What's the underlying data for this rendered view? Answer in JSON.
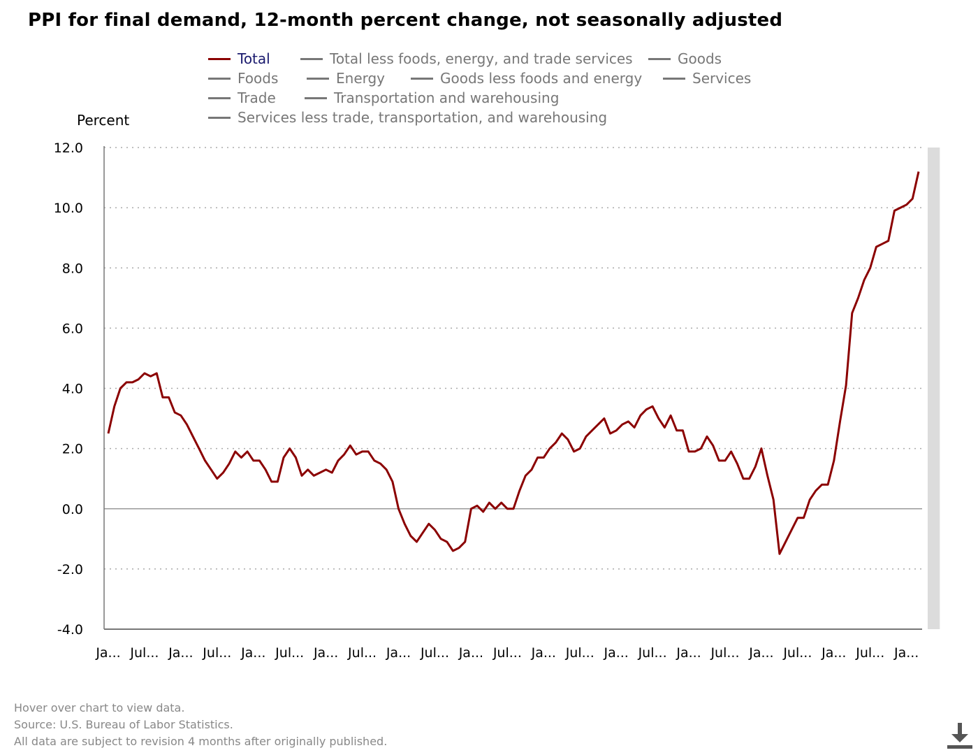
{
  "title": "PPI for final demand, 12-month percent change, not seasonally adjusted",
  "legend": [
    {
      "label": "Total",
      "active": true
    },
    {
      "label": "Total less foods, energy, and trade services",
      "active": false
    },
    {
      "label": "Goods",
      "active": false
    },
    {
      "label": "Foods",
      "active": false
    },
    {
      "label": "Energy",
      "active": false
    },
    {
      "label": "Goods less foods and energy",
      "active": false
    },
    {
      "label": "Services",
      "active": false
    },
    {
      "label": "Trade",
      "active": false
    },
    {
      "label": "Transportation and warehousing",
      "active": false
    },
    {
      "label": "Services less trade, transportation, and warehousing",
      "active": false
    }
  ],
  "footer": {
    "hover": "Hover over chart to view data.",
    "source": "Source: U.S. Bureau of Labor Statistics.",
    "revision": "All data are subject to revision 4 months after originally published."
  },
  "icons": {
    "download": "download-icon"
  },
  "colors": {
    "total_line": "#8b0000",
    "recession_band": "#dcdcdc",
    "grid": "#aaaaaa",
    "inactive_legend": "#777777",
    "active_legend_text": "#1a1a6e"
  },
  "chart_data": {
    "type": "line",
    "ylabel": "Percent",
    "ylim": [
      -4,
      12
    ],
    "yticks": [
      "12.0",
      "10.0",
      "8.0",
      "6.0",
      "4.0",
      "2.0",
      "0.0",
      "-2.0",
      "-4.0"
    ],
    "ytick_values": [
      12,
      10,
      8,
      6,
      4,
      2,
      0,
      -2,
      -4
    ],
    "xticks": [
      "Ja...",
      "Jul...",
      "Ja...",
      "Jul...",
      "Ja...",
      "Jul...",
      "Ja...",
      "Jul...",
      "Ja...",
      "Jul...",
      "Ja...",
      "Jul...",
      "Ja...",
      "Jul...",
      "Ja...",
      "Jul...",
      "Ja...",
      "Jul...",
      "Ja...",
      "Jul...",
      "Ja...",
      "Jul...",
      "Ja..."
    ],
    "grid": "horizontal dotted",
    "legend_position": "top",
    "recession_shading": {
      "start_month_index": 136,
      "end_month_index": 137
    },
    "series": [
      {
        "name": "Total",
        "color": "#8b0000",
        "values": [
          2.5,
          3.4,
          4.0,
          4.2,
          4.2,
          4.3,
          4.5,
          4.4,
          4.5,
          3.7,
          3.7,
          3.2,
          3.1,
          2.8,
          2.4,
          2.0,
          1.6,
          1.3,
          1.0,
          1.2,
          1.5,
          1.9,
          1.7,
          1.9,
          1.6,
          1.6,
          1.3,
          0.9,
          0.9,
          1.7,
          2.0,
          1.7,
          1.1,
          1.3,
          1.1,
          1.2,
          1.3,
          1.2,
          1.6,
          1.8,
          2.1,
          1.8,
          1.9,
          1.9,
          1.6,
          1.5,
          1.3,
          0.9,
          0.0,
          -0.5,
          -0.9,
          -1.1,
          -0.8,
          -0.5,
          -0.7,
          -1.0,
          -1.1,
          -1.4,
          -1.3,
          -1.1,
          0.0,
          0.1,
          -0.1,
          0.2,
          0.0,
          0.2,
          0.0,
          0.0,
          0.6,
          1.1,
          1.3,
          1.7,
          1.7,
          2.0,
          2.2,
          2.5,
          2.3,
          1.9,
          2.0,
          2.4,
          2.6,
          2.8,
          3.0,
          2.5,
          2.6,
          2.8,
          2.9,
          2.7,
          3.1,
          3.3,
          3.4,
          3.0,
          2.7,
          3.1,
          2.6,
          2.6,
          1.9,
          1.9,
          2.0,
          2.4,
          2.1,
          1.6,
          1.6,
          1.9,
          1.5,
          1.0,
          1.0,
          1.4,
          2.0,
          1.1,
          0.3,
          -1.5,
          -1.1,
          -0.7,
          -0.3,
          -0.3,
          0.3,
          0.6,
          0.8,
          0.8,
          1.6,
          2.9,
          4.1,
          6.5,
          7.0,
          7.6,
          8.0,
          8.7,
          8.8,
          8.9,
          9.9,
          10.0,
          10.1,
          10.3,
          11.2
        ]
      }
    ]
  }
}
